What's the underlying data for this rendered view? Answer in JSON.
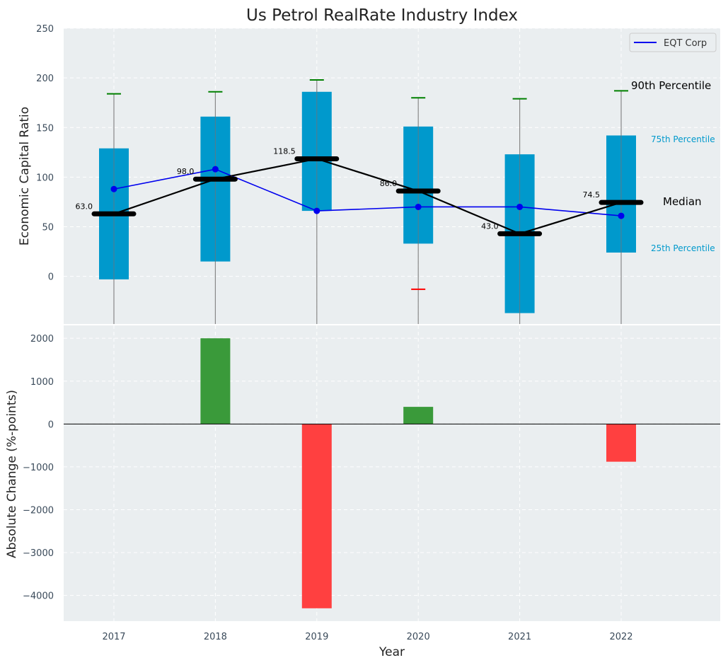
{
  "chart_data": [
    {
      "type": "box-summary",
      "title": "Us Petrol RealRate Industry Index",
      "ylabel": "Economic Capital Ratio",
      "categories": [
        "2017",
        "2018",
        "2019",
        "2020",
        "2021",
        "2022"
      ],
      "ylim": [
        -48,
        250
      ],
      "yticks": [
        0,
        50,
        100,
        150,
        200,
        250
      ],
      "p10": [
        null,
        null,
        null,
        -13,
        null,
        null
      ],
      "p25": [
        -3,
        15,
        66,
        33,
        -37,
        24
      ],
      "median": [
        63.0,
        98.0,
        118.5,
        86.0,
        43.0,
        74.5
      ],
      "p75": [
        129,
        161,
        186,
        151,
        123,
        142
      ],
      "p90": [
        184,
        186,
        198,
        180,
        179,
        187
      ],
      "median_labels": [
        "63.0",
        "98.0",
        "118.5",
        "86.0",
        "43.0",
        "74.5"
      ],
      "company_series": {
        "name": "EQT Corp",
        "values": [
          88,
          108,
          66,
          70,
          70,
          61
        ],
        "color": "#0000ee"
      },
      "annotations": {
        "p90": "90th Percentile",
        "p75": "75th Percentile",
        "median": "Median",
        "p25": "25th Percentile"
      },
      "colors": {
        "box": "#0099cc",
        "median": "#000000",
        "p90": "#008000",
        "p10": "#ff0000",
        "whisker": "#888888"
      },
      "legend": "top-right"
    },
    {
      "type": "bar",
      "xlabel": "Year",
      "ylabel": "Absolute Change (%-points)",
      "categories": [
        "2017",
        "2018",
        "2019",
        "2020",
        "2021",
        "2022"
      ],
      "values": [
        0,
        2000,
        -4300,
        400,
        0,
        -880
      ],
      "ylim": [
        -4600,
        2300
      ],
      "yticks": [
        -4000,
        -3000,
        -2000,
        -1000,
        0,
        1000,
        2000
      ],
      "ytick_labels": [
        "−4000",
        "−3000",
        "−2000",
        "−1000",
        "0",
        "1000",
        "2000"
      ],
      "colors": {
        "positive": "#3a9a3a",
        "negative": "#ff4040"
      }
    }
  ]
}
